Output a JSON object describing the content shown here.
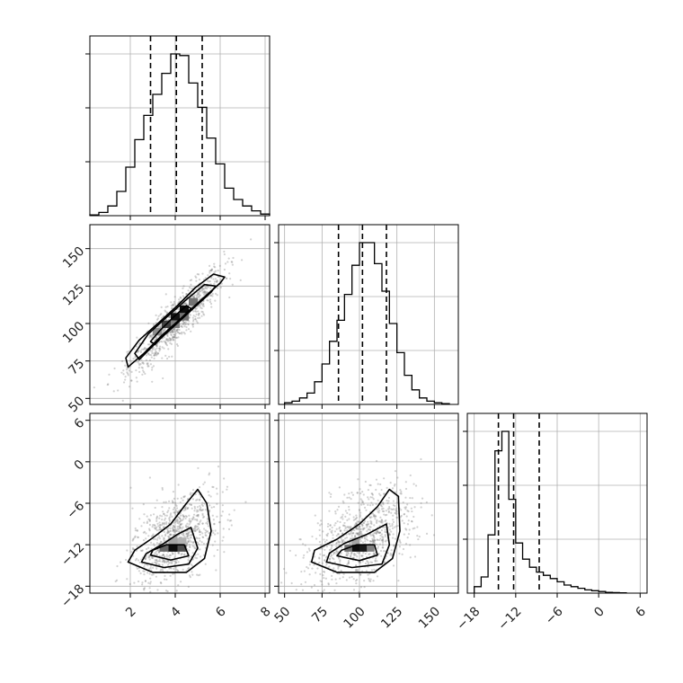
{
  "chart_data": {
    "type": "corner",
    "grid": true,
    "colors": {
      "hist": "#000000",
      "quantile": "#000000",
      "contour": "#000000",
      "points": "#7f7f7f",
      "grid": "#b0b0b0"
    },
    "params": [
      {
        "range": [
          0.2,
          8.2
        ],
        "ticks": [
          2,
          4,
          6,
          8
        ],
        "tick_labels": [
          "2",
          "4",
          "6",
          "8"
        ]
      },
      {
        "range": [
          46,
          166
        ],
        "ticks": [
          50,
          75,
          100,
          125,
          150
        ],
        "tick_labels": [
          "50",
          "75",
          "100",
          "125",
          "150"
        ]
      },
      {
        "range": [
          -19,
          7
        ],
        "ticks": [
          -18,
          -12,
          -6,
          0,
          6
        ],
        "tick_labels": [
          "−18",
          "−12",
          "−6",
          "0",
          "6"
        ]
      }
    ],
    "histograms": [
      {
        "param": 0,
        "bins": [
          0.2,
          0.6,
          1.0,
          1.4,
          1.8,
          2.2,
          2.6,
          3.0,
          3.4,
          3.8,
          4.2,
          4.6,
          5.0,
          5.4,
          5.8,
          6.2,
          6.6,
          7.0,
          7.4,
          7.8
        ],
        "bin_width": 0.4,
        "heights": [
          0.5,
          2,
          6,
          15,
          30,
          47,
          62,
          75,
          88,
          100,
          99,
          82,
          67,
          48,
          32,
          17,
          10,
          6,
          3,
          1
        ],
        "quantiles": [
          2.9,
          4.05,
          5.2
        ]
      },
      {
        "param": 1,
        "bins": [
          50,
          55,
          60,
          65,
          70,
          75,
          80,
          85,
          90,
          95,
          100,
          105,
          110,
          115,
          120,
          125,
          130,
          135,
          140,
          145,
          150,
          155
        ],
        "bin_width": 5,
        "heights": [
          1,
          2,
          4,
          7,
          14,
          25,
          39,
          52,
          68,
          86,
          100,
          100,
          87,
          70,
          50,
          32,
          18,
          9,
          4,
          2,
          1,
          0.5
        ],
        "quantiles": [
          86,
          102,
          118
        ]
      },
      {
        "param": 2,
        "bins": [
          -18,
          -17,
          -16,
          -15,
          -14,
          -13,
          -12,
          -11,
          -10,
          -9,
          -8,
          -7,
          -6,
          -5,
          -4,
          -3,
          -2,
          -1,
          0,
          1,
          2,
          3
        ],
        "bin_width": 1,
        "heights": [
          4,
          10,
          36,
          88,
          100,
          58,
          31,
          21,
          16,
          13,
          11,
          9,
          7,
          5,
          4,
          3,
          2,
          1.5,
          1,
          0.5,
          0.3,
          0.2
        ],
        "quantiles": [
          -14.5,
          -12.3,
          -8.6
        ]
      }
    ],
    "contours": [
      {
        "x_param": 0,
        "y_param": 1,
        "levels": [
          [
            [
              1.9,
              71
            ],
            [
              2.6,
              80
            ],
            [
              3.4,
              92
            ],
            [
              4.3,
              104
            ],
            [
              5.1,
              115
            ],
            [
              6.0,
              127
            ],
            [
              6.2,
              131
            ],
            [
              5.7,
              133
            ],
            [
              4.9,
              124
            ],
            [
              4.1,
              112
            ],
            [
              3.3,
              101
            ],
            [
              2.4,
              89
            ],
            [
              1.8,
              77
            ]
          ],
          [
            [
              2.4,
              76
            ],
            [
              3.2,
              88
            ],
            [
              4.0,
              99
            ],
            [
              4.8,
              110
            ],
            [
              5.6,
              121
            ],
            [
              5.8,
              125
            ],
            [
              5.3,
              126
            ],
            [
              4.5,
              116
            ],
            [
              3.6,
              104
            ],
            [
              2.8,
              93
            ],
            [
              2.2,
              80
            ]
          ],
          [
            [
              3.1,
              86
            ],
            [
              3.7,
              96
            ],
            [
              4.3,
              104
            ],
            [
              4.7,
              110
            ],
            [
              4.5,
              112
            ],
            [
              3.9,
              104
            ],
            [
              3.3,
              95
            ],
            [
              2.9,
              88
            ]
          ]
        ],
        "density_cells": [
          {
            "x": 3.8,
            "y": 102,
            "w": 0.4,
            "h": 5,
            "shade": 0.92
          },
          {
            "x": 4.2,
            "y": 107,
            "w": 0.4,
            "h": 5,
            "shade": 0.95
          },
          {
            "x": 3.4,
            "y": 97,
            "w": 0.4,
            "h": 5,
            "shade": 0.75
          },
          {
            "x": 4.6,
            "y": 112,
            "w": 0.4,
            "h": 5,
            "shade": 0.55
          },
          {
            "x": 3.0,
            "y": 92,
            "w": 0.4,
            "h": 5,
            "shade": 0.45
          },
          {
            "x": 3.8,
            "y": 97,
            "w": 0.4,
            "h": 5,
            "shade": 0.5
          },
          {
            "x": 4.2,
            "y": 102,
            "w": 0.4,
            "h": 5,
            "shade": 0.55
          }
        ],
        "points": {
          "center": [
            4.05,
            102
          ],
          "sigma": [
            1.05,
            17
          ],
          "corr": 0.9,
          "count": 900
        }
      },
      {
        "x_param": 0,
        "y_param": 2,
        "levels": [
          [
            [
              1.9,
              -14.5
            ],
            [
              3.0,
              -16.0
            ],
            [
              4.5,
              -16.0
            ],
            [
              5.3,
              -14.0
            ],
            [
              5.6,
              -10.0
            ],
            [
              5.4,
              -6.0
            ],
            [
              5.0,
              -4.0
            ],
            [
              4.5,
              -6.0
            ],
            [
              3.8,
              -9.0
            ],
            [
              3.0,
              -11.0
            ],
            [
              2.2,
              -12.8
            ]
          ],
          [
            [
              2.5,
              -14.5
            ],
            [
              3.5,
              -15.3
            ],
            [
              4.6,
              -14.8
            ],
            [
              5.0,
              -12.5
            ],
            [
              4.7,
              -9.5
            ],
            [
              4.1,
              -10.5
            ],
            [
              3.5,
              -11.8
            ],
            [
              2.7,
              -13.3
            ]
          ],
          [
            [
              2.9,
              -13.5
            ],
            [
              3.8,
              -14.2
            ],
            [
              4.6,
              -13.6
            ],
            [
              4.4,
              -12.0
            ],
            [
              3.6,
              -12.0
            ],
            [
              3.0,
              -12.8
            ]
          ]
        ],
        "density_cells": [
          {
            "x": 3.7,
            "y": -13.0,
            "w": 0.4,
            "h": 1,
            "shade": 0.95
          },
          {
            "x": 4.1,
            "y": -13.0,
            "w": 0.4,
            "h": 1,
            "shade": 0.7
          },
          {
            "x": 3.3,
            "y": -13.0,
            "w": 0.4,
            "h": 1,
            "shade": 0.6
          },
          {
            "x": 3.7,
            "y": -12.0,
            "w": 0.4,
            "h": 1,
            "shade": 0.35
          },
          {
            "x": 4.1,
            "y": -12.0,
            "w": 0.4,
            "h": 1,
            "shade": 0.3
          }
        ],
        "points": {
          "center": [
            4.0,
            -11.5
          ],
          "sigma": [
            1.0,
            3.5
          ],
          "corr": 0.5,
          "count": 900
        }
      },
      {
        "x_param": 1,
        "y_param": 2,
        "levels": [
          [
            [
              68,
              -14.5
            ],
            [
              85,
              -16.0
            ],
            [
              110,
              -16.0
            ],
            [
              122,
              -14.0
            ],
            [
              127,
              -10.0
            ],
            [
              126,
              -5.0
            ],
            [
              120,
              -4.0
            ],
            [
              112,
              -6.5
            ],
            [
              100,
              -9.0
            ],
            [
              85,
              -11.2
            ],
            [
              70,
              -12.8
            ]
          ],
          [
            [
              78,
              -14.5
            ],
            [
              95,
              -15.3
            ],
            [
              115,
              -14.8
            ],
            [
              120,
              -12.0
            ],
            [
              118,
              -9.0
            ],
            [
              105,
              -10.5
            ],
            [
              90,
              -11.8
            ],
            [
              80,
              -13.2
            ]
          ],
          [
            [
              85,
              -13.6
            ],
            [
              100,
              -14.3
            ],
            [
              112,
              -13.5
            ],
            [
              110,
              -12.0
            ],
            [
              98,
              -12.0
            ],
            [
              88,
              -12.8
            ]
          ]
        ],
        "density_cells": [
          {
            "x": 95,
            "y": -13.0,
            "w": 5,
            "h": 1,
            "shade": 0.95
          },
          {
            "x": 100,
            "y": -13.0,
            "w": 5,
            "h": 1,
            "shade": 0.9
          },
          {
            "x": 90,
            "y": -13.0,
            "w": 5,
            "h": 1,
            "shade": 0.55
          },
          {
            "x": 105,
            "y": -13.0,
            "w": 5,
            "h": 1,
            "shade": 0.5
          },
          {
            "x": 95,
            "y": -12.0,
            "w": 5,
            "h": 1,
            "shade": 0.35
          }
        ],
        "points": {
          "center": [
            101,
            -11.5
          ],
          "sigma": [
            17,
            3.5
          ],
          "corr": 0.5,
          "count": 900
        }
      }
    ]
  }
}
